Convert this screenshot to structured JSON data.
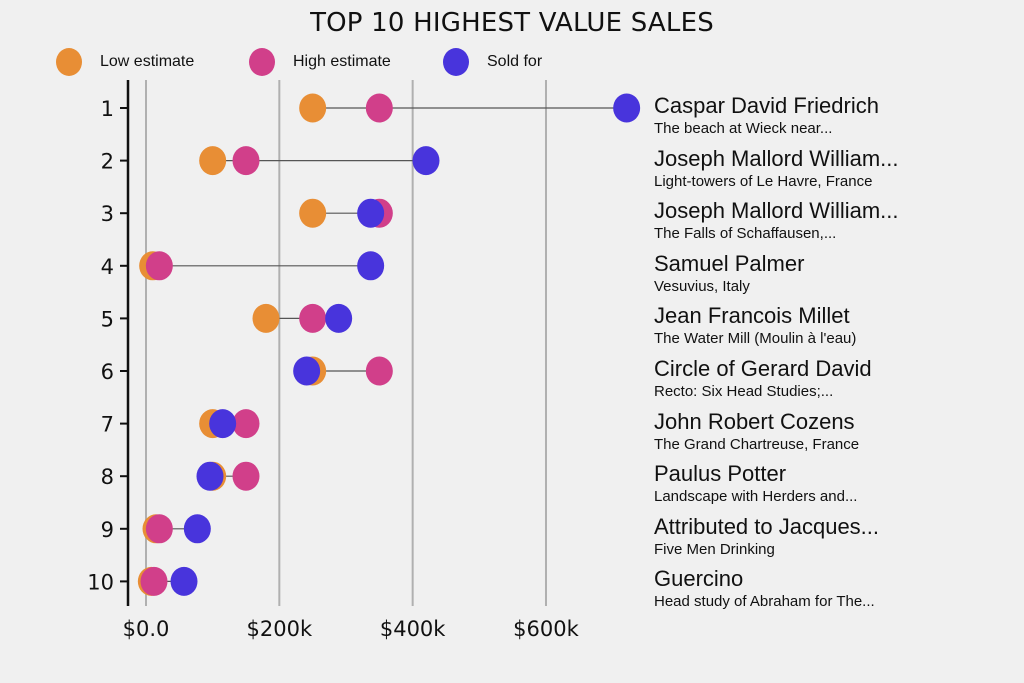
{
  "colors": {
    "background": "#f0f0f0",
    "low": "#e88e35",
    "high": "#d13f8a",
    "sold": "#4834dc",
    "grid": "#b0b0b0",
    "axis": "#111111",
    "connector": "#555555"
  },
  "chart_data": {
    "type": "scatter",
    "subtype": "dumbbell",
    "title": "TOP 10 HIGHEST VALUE SALES",
    "xlabel": "",
    "ylabel": "",
    "xlim": [
      -28000,
      730000
    ],
    "grid": "vertical",
    "legend_position": "top-left",
    "legend": [
      "Low estimate",
      "High estimate",
      "Sold for"
    ],
    "x_ticks": [
      0,
      200000,
      400000,
      600000
    ],
    "x_tick_labels": [
      "$0.0",
      "$200k",
      "$400k",
      "$600k"
    ],
    "y_tick_labels": [
      "1",
      "2",
      "3",
      "4",
      "5",
      "6",
      "7",
      "8",
      "9",
      "10"
    ],
    "rows": [
      {
        "rank": "1",
        "artist": "Caspar David Friedrich",
        "work": "The beach at Wieck near...",
        "low": 250000,
        "high": 350000,
        "sold": 721000
      },
      {
        "rank": "2",
        "artist": "Joseph Mallord William...",
        "work": "Light-towers of Le Havre, France",
        "low": 100000,
        "high": 150000,
        "sold": 420000
      },
      {
        "rank": "3",
        "artist": "Joseph Mallord William...",
        "work": "The Falls of Schaffausen,...",
        "low": 250000,
        "high": 350000,
        "sold": 337000
      },
      {
        "rank": "4",
        "artist": "Samuel Palmer",
        "work": "Vesuvius, Italy",
        "low": 10000,
        "high": 20000,
        "sold": 337000
      },
      {
        "rank": "5",
        "artist": "Jean Francois Millet",
        "work": "The Water Mill (Moulin à l'eau)",
        "low": 180000,
        "high": 250000,
        "sold": 289000
      },
      {
        "rank": "6",
        "artist": "Circle of Gerard David",
        "work": "Recto: Six Head Studies;...",
        "low": 250000,
        "high": 350000,
        "sold": 241000
      },
      {
        "rank": "7",
        "artist": "John Robert Cozens",
        "work": "The Grand Chartreuse, France",
        "low": 100000,
        "high": 150000,
        "sold": 115000
      },
      {
        "rank": "8",
        "artist": "Paulus Potter",
        "work": "Landscape with Herders and...",
        "low": 100000,
        "high": 150000,
        "sold": 96000
      },
      {
        "rank": "9",
        "artist": "Attributed to Jacques...",
        "work": "Five Men Drinking",
        "low": 15000,
        "high": 20000,
        "sold": 77000
      },
      {
        "rank": "10",
        "artist": "Guercino",
        "work": "Head study of Abraham for The...",
        "low": 8000,
        "high": 12000,
        "sold": 57000
      }
    ]
  }
}
